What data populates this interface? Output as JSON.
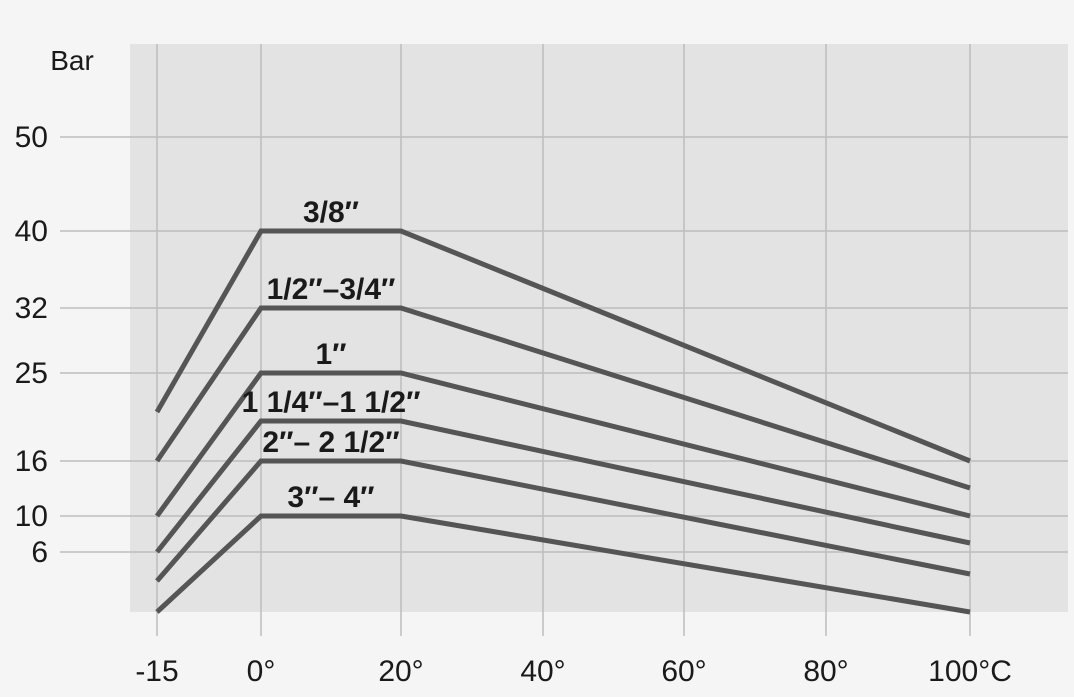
{
  "chart_data": {
    "type": "line",
    "ylabel": "Bar",
    "xlabel": "",
    "x_ticks": [
      {
        "value": -15,
        "label": "-15"
      },
      {
        "value": 0,
        "label": "0°"
      },
      {
        "value": 20,
        "label": "20°"
      },
      {
        "value": 40,
        "label": "40°"
      },
      {
        "value": 60,
        "label": "60°"
      },
      {
        "value": 80,
        "label": "80°"
      },
      {
        "value": 100,
        "label": "100°C"
      }
    ],
    "y_ticks": [
      6,
      10,
      16,
      25,
      32,
      40,
      50
    ],
    "xlim": [
      -15,
      100
    ],
    "ylim": [
      0,
      50
    ],
    "grid": true,
    "series": [
      {
        "name": "3/8″",
        "x": [
          -15,
          0,
          20,
          100
        ],
        "y": [
          21,
          40,
          40,
          16
        ]
      },
      {
        "name": "1/2″–3/4″",
        "x": [
          -15,
          0,
          20,
          100
        ],
        "y": [
          16,
          32,
          32,
          13
        ]
      },
      {
        "name": "1″",
        "x": [
          -15,
          0,
          20,
          100
        ],
        "y": [
          10,
          25,
          25,
          10
        ]
      },
      {
        "name": "1 1/4″–1 1/2″",
        "x": [
          -15,
          0,
          20,
          100
        ],
        "y": [
          6,
          20,
          20,
          7
        ]
      },
      {
        "name": "2″– 2 1/2″",
        "x": [
          -15,
          0,
          20,
          100
        ],
        "y": [
          3,
          16,
          16,
          3.5
        ]
      },
      {
        "name": "3″– 4″",
        "x": [
          -15,
          0,
          20,
          100
        ],
        "y": [
          0,
          10,
          10,
          0
        ]
      }
    ],
    "colors": {
      "page_background": "#f5f5f5",
      "plot_background": "#e3e3e3",
      "grid": "#bdbdbd",
      "line": "#555555",
      "text": "#1a1a1a"
    }
  }
}
